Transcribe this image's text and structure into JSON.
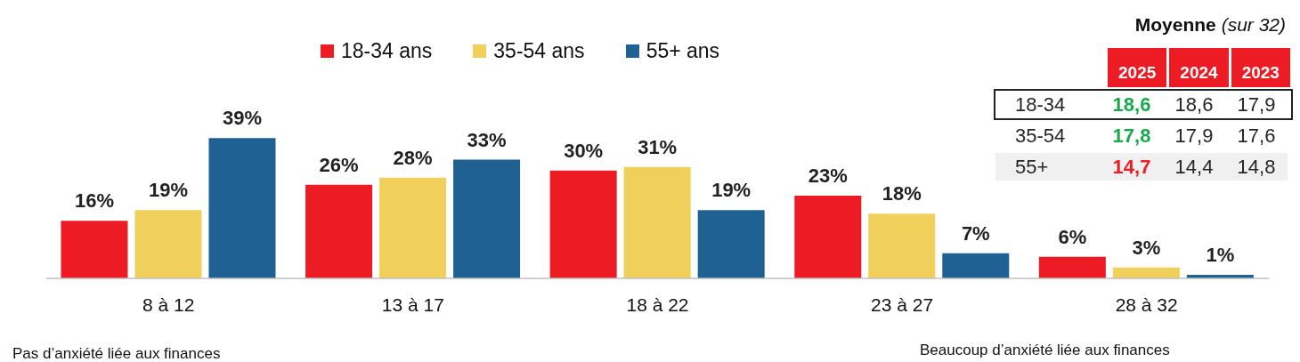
{
  "chart_data": [
    {
      "type": "bar",
      "categories": [
        "8 à 12",
        "13 à 17",
        "18 à 22",
        "23 à 27",
        "28 à 32"
      ],
      "series": [
        {
          "name": "18-34 ans",
          "color": "#ed1c24",
          "values": [
            16,
            26,
            30,
            23,
            6
          ],
          "value_labels": [
            "16%",
            "26%",
            "30%",
            "23%",
            "6%"
          ]
        },
        {
          "name": "35-54 ans",
          "color": "#f0cf5a",
          "values": [
            19,
            28,
            31,
            18,
            3
          ],
          "value_labels": [
            "19%",
            "28%",
            "31%",
            "18%",
            "3%"
          ]
        },
        {
          "name": "55+ ans",
          "color": "#1f6193",
          "values": [
            39,
            33,
            19,
            7,
            1
          ],
          "value_labels": [
            "39%",
            "33%",
            "19%",
            "7%",
            "1%"
          ]
        }
      ],
      "legend": "top",
      "annotations": [
        "Pas d’anxiété liée aux finances",
        "Beaucoup d’anxiété liée aux finances"
      ]
    },
    {
      "type": "other",
      "title": "Moyenne",
      "subtitle": "(sur 32)",
      "categories": [
        "2025",
        "2024",
        "2023"
      ],
      "y_categories": [
        "18-34",
        "35-54",
        "55+"
      ],
      "cell_labels": [
        [
          "18,6",
          "18,6",
          "17,9"
        ],
        [
          "17,8",
          "17,9",
          "17,6"
        ],
        [
          "14,7",
          "14,4",
          "14,8"
        ]
      ],
      "colors": [
        [
          "#1aa84f",
          "#262626",
          "#262626"
        ],
        [
          "#1aa84f",
          "#262626",
          "#262626"
        ],
        [
          "#ed1c24",
          "#262626",
          "#262626"
        ]
      ]
    }
  ]
}
